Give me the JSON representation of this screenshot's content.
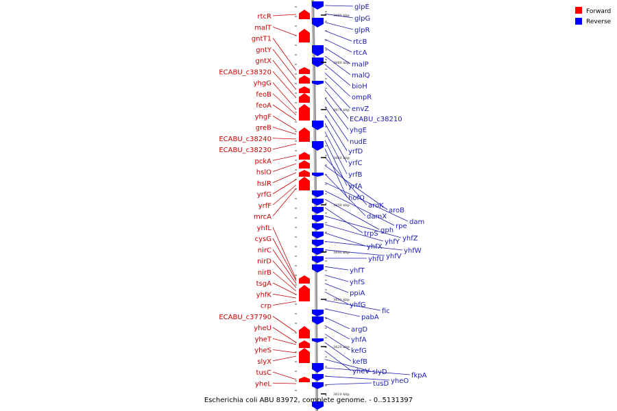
{
  "caption": "Escherichia coli ABU 83972, complete genome. - 0..5131397",
  "legend": [
    {
      "label": "Forward",
      "color": "#ff0000"
    },
    {
      "label": "Reverse",
      "color": "#0000ff"
    }
  ],
  "colors": {
    "forward": "#ff0000",
    "reverse": "#0000ff",
    "forward_label": "#c80000",
    "reverse_label": "#1a1ab4",
    "backbone": "#999999"
  },
  "ticks": [
    "3890 kbp",
    "3880 kbp",
    "3870 kbp",
    "3860 kbp",
    "3850 kbp",
    "3840 kbp",
    "3830 kbp",
    "3820 kbp",
    "3810 kbp"
  ],
  "forward_genes": [
    "rtcR",
    "malT",
    "gntT1",
    "gntY",
    "gntX",
    "ECABU_c38320",
    "yhgG",
    "feoB",
    "feoA",
    "yhgF",
    "greB",
    "ECABU_c38240",
    "ECABU_c38230",
    "pckA",
    "hslO",
    "hslR",
    "yrfG",
    "yrfF",
    "mrcA",
    "yhfL",
    "cysG",
    "nirC",
    "nirD",
    "nirB",
    "tsgA",
    "yhfK",
    "crp",
    "ECABU_c37790",
    "yheU",
    "yheT",
    "yheS",
    "slyX",
    "tusC",
    "yheL"
  ],
  "reverse_genes": [
    "glpE",
    "glpG",
    "glpR",
    "rtcB",
    "rtcA",
    "malP",
    "malQ",
    "bioH",
    "ompR",
    "envZ",
    "ECABU_c38210",
    "yhgE",
    "nudE",
    "yrfD",
    "yrfC",
    "yrfB",
    "yrfA",
    "hofQ",
    "aroK",
    "aroB",
    "damX",
    "dam",
    "rpe",
    "gph",
    "trpS",
    "yhfZ",
    "yhfY",
    "yhfX",
    "yhfW",
    "yhfV",
    "yhfU",
    "yhfT",
    "yhfS",
    "ppiA",
    "yhfG",
    "fic",
    "pabA",
    "argD",
    "yhfA",
    "kefG",
    "kefB",
    "yheV",
    "slyD",
    "fkpA",
    "yheO",
    "tusD"
  ]
}
